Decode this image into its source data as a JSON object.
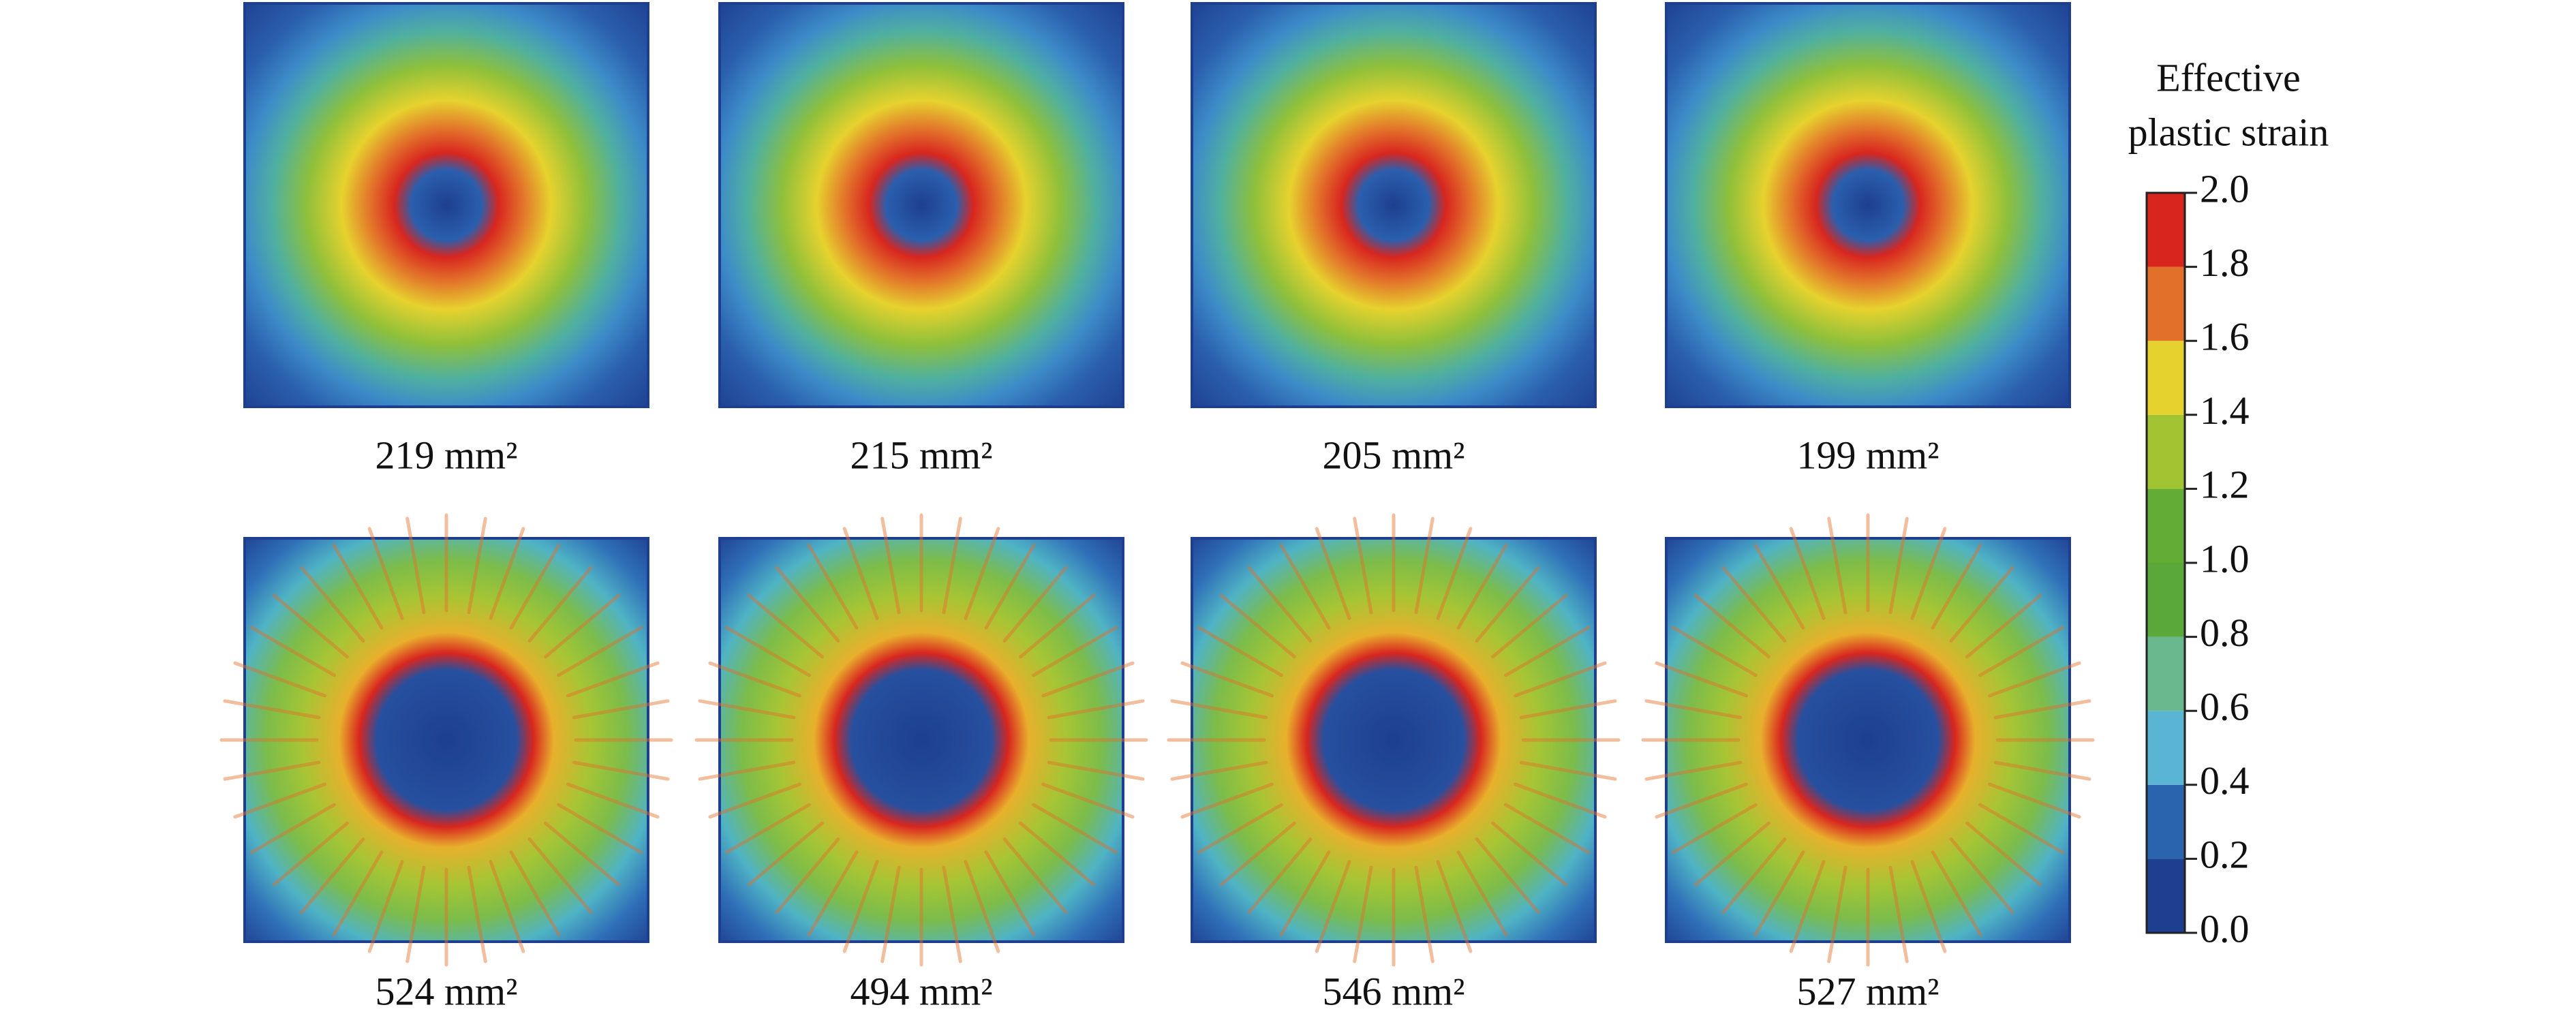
{
  "panels": [
    {
      "caption": "219 mm²",
      "row": 0
    },
    {
      "caption": "215 mm²",
      "row": 0
    },
    {
      "caption": "205 mm²",
      "row": 0
    },
    {
      "caption": "199 mm²",
      "row": 0
    },
    {
      "caption": "524 mm²",
      "row": 1
    },
    {
      "caption": "494 mm²",
      "row": 1
    },
    {
      "caption": "546 mm²",
      "row": 1
    },
    {
      "caption": "527 mm²",
      "row": 1
    }
  ],
  "colorbar": {
    "title": [
      "Effective",
      "plastic strain"
    ],
    "lim": [
      0,
      2
    ],
    "ticks": [
      {
        "value": 0,
        "label": "0.0"
      },
      {
        "value": 0.2,
        "label": "0.2"
      },
      {
        "value": 0.4,
        "label": "0.4"
      },
      {
        "value": 0.6,
        "label": "0.6"
      },
      {
        "value": 0.8,
        "label": "0.8"
      },
      {
        "value": 1,
        "label": "1.0"
      },
      {
        "value": 1.2,
        "label": "1.2"
      },
      {
        "value": 1.4,
        "label": "1.4"
      },
      {
        "value": 1.6,
        "label": "1.6"
      },
      {
        "value": 1.8,
        "label": "1.8"
      },
      {
        "value": 2,
        "label": "2.0"
      }
    ],
    "colors": [
      "#1e3f8f",
      "#2a64ae",
      "#5ab4d3",
      "#69b88e",
      "#5ba83a",
      "#63ac35",
      "#a2c433",
      "#e6d22e",
      "#e2702a",
      "#d8261f"
    ]
  }
}
